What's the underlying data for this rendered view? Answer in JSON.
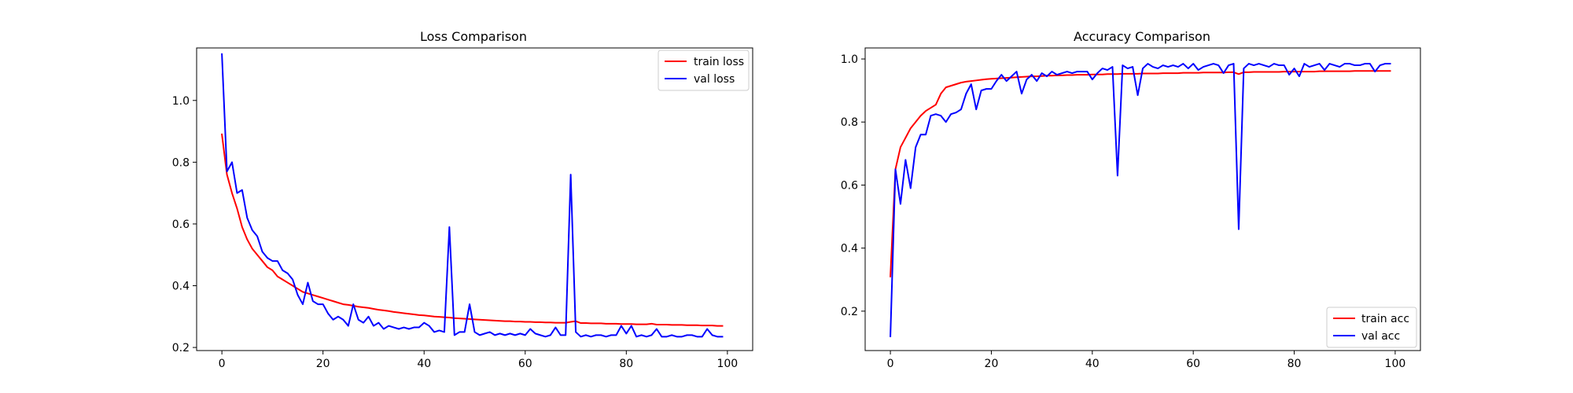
{
  "chart_data": [
    {
      "type": "line",
      "title": "Loss Comparison",
      "xlabel": "",
      "ylabel": "",
      "xlim": [
        -5,
        105
      ],
      "ylim": [
        0.19,
        1.17
      ],
      "xticks": [
        0,
        20,
        40,
        60,
        80,
        100
      ],
      "xtick_labels": [
        "0",
        "20",
        "40",
        "60",
        "80",
        "100"
      ],
      "yticks": [
        0.2,
        0.4,
        0.6,
        0.8,
        1.0
      ],
      "ytick_labels": [
        "0.2",
        "0.4",
        "0.6",
        "0.8",
        "1.0"
      ],
      "grid": false,
      "legend_position": "top-right",
      "series": [
        {
          "name": "train loss",
          "color": "#ff0000",
          "x": [
            0,
            1,
            2,
            3,
            4,
            5,
            6,
            7,
            8,
            9,
            10,
            11,
            12,
            13,
            14,
            15,
            16,
            17,
            18,
            19,
            20,
            21,
            22,
            23,
            24,
            25,
            26,
            27,
            28,
            29,
            30,
            31,
            32,
            33,
            34,
            35,
            36,
            37,
            38,
            39,
            40,
            41,
            42,
            43,
            44,
            45,
            46,
            47,
            48,
            49,
            50,
            51,
            52,
            53,
            54,
            55,
            56,
            57,
            58,
            59,
            60,
            61,
            62,
            63,
            64,
            65,
            66,
            67,
            68,
            69,
            70,
            71,
            72,
            73,
            74,
            75,
            76,
            77,
            78,
            79,
            80,
            81,
            82,
            83,
            84,
            85,
            86,
            87,
            88,
            89,
            90,
            91,
            92,
            93,
            94,
            95,
            96,
            97,
            98,
            99
          ],
          "y": [
            0.89,
            0.76,
            0.7,
            0.65,
            0.59,
            0.55,
            0.52,
            0.5,
            0.48,
            0.46,
            0.45,
            0.43,
            0.42,
            0.41,
            0.4,
            0.39,
            0.38,
            0.375,
            0.37,
            0.365,
            0.36,
            0.355,
            0.35,
            0.345,
            0.34,
            0.338,
            0.335,
            0.332,
            0.33,
            0.328,
            0.325,
            0.322,
            0.32,
            0.318,
            0.315,
            0.313,
            0.311,
            0.309,
            0.307,
            0.305,
            0.304,
            0.302,
            0.3,
            0.299,
            0.298,
            0.297,
            0.295,
            0.294,
            0.293,
            0.292,
            0.291,
            0.29,
            0.289,
            0.288,
            0.287,
            0.286,
            0.285,
            0.285,
            0.284,
            0.284,
            0.283,
            0.283,
            0.282,
            0.282,
            0.281,
            0.281,
            0.28,
            0.28,
            0.28,
            0.283,
            0.285,
            0.279,
            0.279,
            0.278,
            0.278,
            0.278,
            0.277,
            0.277,
            0.277,
            0.276,
            0.276,
            0.276,
            0.275,
            0.275,
            0.275,
            0.277,
            0.274,
            0.274,
            0.274,
            0.273,
            0.273,
            0.273,
            0.272,
            0.272,
            0.272,
            0.271,
            0.271,
            0.271,
            0.27,
            0.27
          ]
        },
        {
          "name": "val loss",
          "color": "#0000ff",
          "x": [
            0,
            1,
            2,
            3,
            4,
            5,
            6,
            7,
            8,
            9,
            10,
            11,
            12,
            13,
            14,
            15,
            16,
            17,
            18,
            19,
            20,
            21,
            22,
            23,
            24,
            25,
            26,
            27,
            28,
            29,
            30,
            31,
            32,
            33,
            34,
            35,
            36,
            37,
            38,
            39,
            40,
            41,
            42,
            43,
            44,
            45,
            46,
            47,
            48,
            49,
            50,
            51,
            52,
            53,
            54,
            55,
            56,
            57,
            58,
            59,
            60,
            61,
            62,
            63,
            64,
            65,
            66,
            67,
            68,
            69,
            70,
            71,
            72,
            73,
            74,
            75,
            76,
            77,
            78,
            79,
            80,
            81,
            82,
            83,
            84,
            85,
            86,
            87,
            88,
            89,
            90,
            91,
            92,
            93,
            94,
            95,
            96,
            97,
            98,
            99
          ],
          "y": [
            1.15,
            0.77,
            0.8,
            0.7,
            0.71,
            0.62,
            0.58,
            0.56,
            0.51,
            0.49,
            0.48,
            0.48,
            0.45,
            0.44,
            0.42,
            0.37,
            0.34,
            0.41,
            0.35,
            0.34,
            0.34,
            0.31,
            0.29,
            0.3,
            0.29,
            0.27,
            0.34,
            0.29,
            0.28,
            0.3,
            0.27,
            0.28,
            0.26,
            0.27,
            0.265,
            0.26,
            0.265,
            0.26,
            0.265,
            0.265,
            0.28,
            0.27,
            0.25,
            0.255,
            0.25,
            0.59,
            0.24,
            0.25,
            0.25,
            0.34,
            0.25,
            0.24,
            0.245,
            0.25,
            0.24,
            0.245,
            0.24,
            0.245,
            0.24,
            0.245,
            0.24,
            0.26,
            0.245,
            0.24,
            0.235,
            0.24,
            0.265,
            0.24,
            0.24,
            0.76,
            0.25,
            0.235,
            0.24,
            0.235,
            0.24,
            0.24,
            0.235,
            0.24,
            0.24,
            0.27,
            0.245,
            0.27,
            0.235,
            0.24,
            0.235,
            0.24,
            0.26,
            0.235,
            0.235,
            0.24,
            0.235,
            0.235,
            0.24,
            0.24,
            0.235,
            0.235,
            0.26,
            0.24,
            0.235,
            0.235
          ]
        }
      ]
    },
    {
      "type": "line",
      "title": "Accuracy Comparison",
      "xlabel": "",
      "ylabel": "",
      "xlim": [
        -5,
        105
      ],
      "ylim": [
        0.075,
        1.035
      ],
      "xticks": [
        0,
        20,
        40,
        60,
        80,
        100
      ],
      "xtick_labels": [
        "0",
        "20",
        "40",
        "60",
        "80",
        "100"
      ],
      "yticks": [
        0.2,
        0.4,
        0.6,
        0.8,
        1.0
      ],
      "ytick_labels": [
        "0.2",
        "0.4",
        "0.6",
        "0.8",
        "1.0"
      ],
      "grid": false,
      "legend_position": "bottom-right",
      "series": [
        {
          "name": "train acc",
          "color": "#ff0000",
          "x": [
            0,
            1,
            2,
            3,
            4,
            5,
            6,
            7,
            8,
            9,
            10,
            11,
            12,
            13,
            14,
            15,
            16,
            17,
            18,
            19,
            20,
            21,
            22,
            23,
            24,
            25,
            26,
            27,
            28,
            29,
            30,
            31,
            32,
            33,
            34,
            35,
            36,
            37,
            38,
            39,
            40,
            41,
            42,
            43,
            44,
            45,
            46,
            47,
            48,
            49,
            50,
            51,
            52,
            53,
            54,
            55,
            56,
            57,
            58,
            59,
            60,
            61,
            62,
            63,
            64,
            65,
            66,
            67,
            68,
            69,
            70,
            71,
            72,
            73,
            74,
            75,
            76,
            77,
            78,
            79,
            80,
            81,
            82,
            83,
            84,
            85,
            86,
            87,
            88,
            89,
            90,
            91,
            92,
            93,
            94,
            95,
            96,
            97,
            98,
            99
          ],
          "y": [
            0.31,
            0.65,
            0.72,
            0.75,
            0.78,
            0.8,
            0.82,
            0.835,
            0.845,
            0.855,
            0.89,
            0.91,
            0.915,
            0.92,
            0.925,
            0.928,
            0.93,
            0.932,
            0.934,
            0.936,
            0.937,
            0.938,
            0.939,
            0.94,
            0.941,
            0.942,
            0.943,
            0.944,
            0.945,
            0.945,
            0.946,
            0.947,
            0.947,
            0.948,
            0.948,
            0.949,
            0.949,
            0.95,
            0.95,
            0.95,
            0.951,
            0.951,
            0.951,
            0.952,
            0.952,
            0.952,
            0.953,
            0.953,
            0.953,
            0.953,
            0.954,
            0.954,
            0.954,
            0.954,
            0.955,
            0.955,
            0.955,
            0.955,
            0.956,
            0.956,
            0.956,
            0.956,
            0.957,
            0.957,
            0.957,
            0.957,
            0.957,
            0.958,
            0.958,
            0.952,
            0.958,
            0.958,
            0.959,
            0.959,
            0.959,
            0.959,
            0.959,
            0.959,
            0.96,
            0.96,
            0.96,
            0.96,
            0.96,
            0.96,
            0.96,
            0.961,
            0.961,
            0.961,
            0.961,
            0.961,
            0.961,
            0.961,
            0.962,
            0.962,
            0.962,
            0.962,
            0.962,
            0.962,
            0.962,
            0.962
          ]
        },
        {
          "name": "val acc",
          "color": "#0000ff",
          "x": [
            0,
            1,
            2,
            3,
            4,
            5,
            6,
            7,
            8,
            9,
            10,
            11,
            12,
            13,
            14,
            15,
            16,
            17,
            18,
            19,
            20,
            21,
            22,
            23,
            24,
            25,
            26,
            27,
            28,
            29,
            30,
            31,
            32,
            33,
            34,
            35,
            36,
            37,
            38,
            39,
            40,
            41,
            42,
            43,
            44,
            45,
            46,
            47,
            48,
            49,
            50,
            51,
            52,
            53,
            54,
            55,
            56,
            57,
            58,
            59,
            60,
            61,
            62,
            63,
            64,
            65,
            66,
            67,
            68,
            69,
            70,
            71,
            72,
            73,
            74,
            75,
            76,
            77,
            78,
            79,
            80,
            81,
            82,
            83,
            84,
            85,
            86,
            87,
            88,
            89,
            90,
            91,
            92,
            93,
            94,
            95,
            96,
            97,
            98,
            99
          ],
          "y": [
            0.12,
            0.65,
            0.54,
            0.68,
            0.59,
            0.72,
            0.76,
            0.76,
            0.82,
            0.825,
            0.82,
            0.8,
            0.825,
            0.83,
            0.84,
            0.89,
            0.92,
            0.84,
            0.9,
            0.905,
            0.905,
            0.93,
            0.95,
            0.93,
            0.945,
            0.96,
            0.89,
            0.935,
            0.95,
            0.93,
            0.955,
            0.945,
            0.96,
            0.95,
            0.955,
            0.96,
            0.955,
            0.96,
            0.96,
            0.96,
            0.935,
            0.955,
            0.97,
            0.965,
            0.975,
            0.63,
            0.98,
            0.97,
            0.975,
            0.885,
            0.97,
            0.985,
            0.975,
            0.97,
            0.98,
            0.975,
            0.98,
            0.975,
            0.985,
            0.97,
            0.985,
            0.965,
            0.975,
            0.98,
            0.985,
            0.98,
            0.955,
            0.98,
            0.985,
            0.46,
            0.97,
            0.985,
            0.98,
            0.985,
            0.98,
            0.975,
            0.985,
            0.98,
            0.98,
            0.95,
            0.97,
            0.945,
            0.985,
            0.975,
            0.98,
            0.985,
            0.965,
            0.985,
            0.98,
            0.975,
            0.985,
            0.985,
            0.98,
            0.98,
            0.985,
            0.985,
            0.96,
            0.98,
            0.985,
            0.985
          ]
        }
      ]
    }
  ]
}
